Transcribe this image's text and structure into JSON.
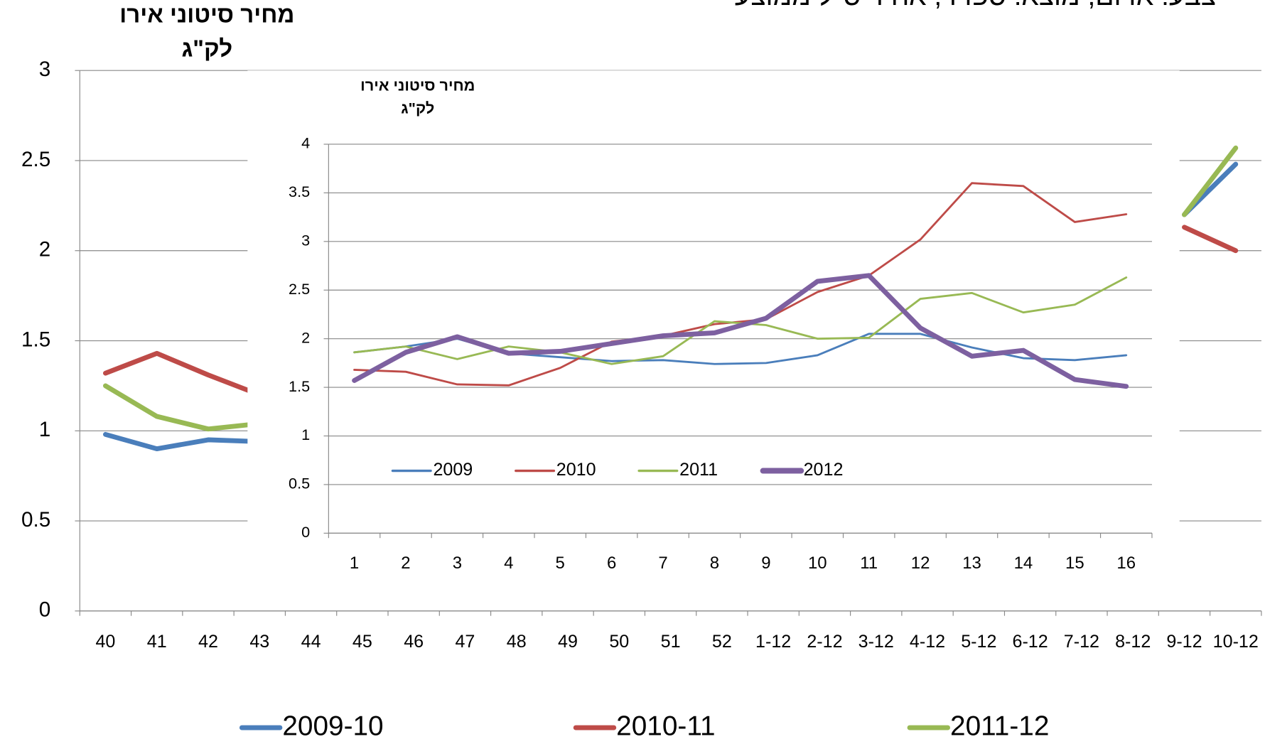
{
  "caption": "צבע: אדום, מוצא: ספרד, אחיד ס\"ל ממוצע",
  "chart_data": [
    {
      "type": "line",
      "title": [
        "מחיר סיטוני  אירו",
        "לק\"ג"
      ],
      "categories": [
        "40",
        "41",
        "42",
        "43",
        "44",
        "45",
        "46",
        "47",
        "48",
        "49",
        "50",
        "51",
        "52",
        "1-12",
        "2-12",
        "3-12",
        "4-12",
        "5-12",
        "6-12",
        "7-12",
        "8-12",
        "9-12",
        "10-12"
      ],
      "series": [
        {
          "name": "2009-10",
          "color": "#4a7ebb",
          "values": [
            0.98,
            0.9,
            0.95,
            0.94,
            null,
            null,
            null,
            null,
            null,
            null,
            null,
            null,
            null,
            null,
            null,
            null,
            null,
            null,
            null,
            null,
            null,
            2.2,
            2.48
          ]
        },
        {
          "name": "2010-11",
          "color": "#be4b48",
          "values": [
            1.32,
            1.43,
            1.31,
            1.2,
            null,
            null,
            null,
            null,
            null,
            null,
            null,
            null,
            null,
            null,
            null,
            null,
            null,
            null,
            null,
            null,
            null,
            2.13,
            2.0
          ]
        },
        {
          "name": "2011-12",
          "color": "#98b954",
          "values": [
            1.25,
            1.08,
            1.01,
            1.04,
            null,
            null,
            null,
            null,
            null,
            null,
            null,
            null,
            null,
            null,
            null,
            null,
            null,
            null,
            null,
            null,
            null,
            2.2,
            2.57
          ]
        }
      ],
      "ylim": [
        0,
        3
      ],
      "yticks": [
        0,
        0.5,
        1,
        1.5,
        2,
        2.5,
        3
      ],
      "grid": true,
      "legend": "bottom"
    },
    {
      "type": "line",
      "title": [
        "מחיר סיטוני אירו",
        "לק\"ג"
      ],
      "categories": [
        "1",
        "2",
        "3",
        "4",
        "5",
        "6",
        "7",
        "8",
        "9",
        "10",
        "11",
        "12",
        "13",
        "14",
        "15",
        "16"
      ],
      "series": [
        {
          "name": "2009",
          "color": "#4a7ebb",
          "values": [
            1.86,
            1.92,
            2.0,
            1.85,
            1.81,
            1.77,
            1.78,
            1.74,
            1.75,
            1.83,
            2.05,
            2.05,
            1.91,
            1.8,
            1.78,
            1.83
          ]
        },
        {
          "name": "2010",
          "color": "#be4b48",
          "values": [
            1.68,
            1.66,
            1.53,
            1.52,
            1.7,
            1.97,
            2.03,
            2.15,
            2.2,
            2.48,
            2.65,
            3.02,
            3.6,
            3.57,
            3.2,
            3.28
          ]
        },
        {
          "name": "2011",
          "color": "#98b954",
          "values": [
            1.86,
            1.92,
            1.79,
            1.92,
            1.86,
            1.74,
            1.82,
            2.18,
            2.14,
            2.0,
            2.01,
            2.41,
            2.47,
            2.27,
            2.35,
            2.63
          ]
        },
        {
          "name": "2012",
          "color": "#7d60a0",
          "values": [
            1.57,
            1.86,
            2.02,
            1.85,
            1.87,
            1.95,
            2.03,
            2.06,
            2.21,
            2.59,
            2.65,
            2.11,
            1.82,
            1.88,
            1.58,
            1.51
          ]
        }
      ],
      "ylim": [
        0,
        4
      ],
      "yticks": [
        0,
        0.5,
        1,
        1.5,
        2,
        2.5,
        3,
        3.5,
        4
      ],
      "grid": true,
      "legend": "bottom-left"
    }
  ]
}
